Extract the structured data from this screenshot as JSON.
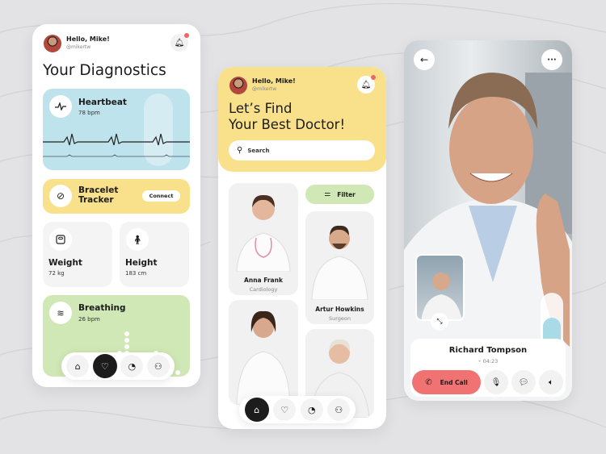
{
  "colors": {
    "background": "#e3e3e6",
    "blue_card": "#bfe3ec",
    "yellow": "#f9e08a",
    "green": "#cfe8b5",
    "end_call": "#f07272",
    "dark": "#1c1c1c"
  },
  "diagnostics": {
    "user": {
      "greeting": "Hello, Mike!",
      "handle": "@mikertw"
    },
    "title": "Your Diagnostics",
    "heartbeat": {
      "label": "Heartbeat",
      "value": "78 bpm",
      "icon": "pulse-icon"
    },
    "bracelet": {
      "label_line1": "Bracelet",
      "label_line2": "Tracker",
      "button": "Connect",
      "icon": "bracelet-icon"
    },
    "weight": {
      "label": "Weight",
      "value": "72 kg",
      "icon": "scale-icon"
    },
    "height": {
      "label": "Height",
      "value": "183 cm",
      "icon": "height-icon"
    },
    "breathing": {
      "label": "Breathing",
      "value": "26 bpm",
      "icon": "wind-icon"
    },
    "nav": {
      "active": "heart",
      "items": [
        "home",
        "heart",
        "stats",
        "profile"
      ]
    }
  },
  "find_doctor": {
    "user": {
      "greeting": "Hello, Mike!",
      "handle": "@mikertw"
    },
    "title_line1": "Let’s Find",
    "title_line2": "Your Best Doctor!",
    "search_placeholder": "Search",
    "filter_label": "Filter",
    "doctors": [
      {
        "name": "Anna Frank",
        "specialty": "Cardiology"
      },
      {
        "name": "Artur Howkins",
        "specialty": "Surgeon"
      }
    ],
    "nav": {
      "active": "home",
      "items": [
        "home",
        "heart",
        "stats",
        "profile"
      ]
    }
  },
  "video_call": {
    "caller": "Richard Tompson",
    "duration": "04:23",
    "end_call_label": "End Call"
  }
}
